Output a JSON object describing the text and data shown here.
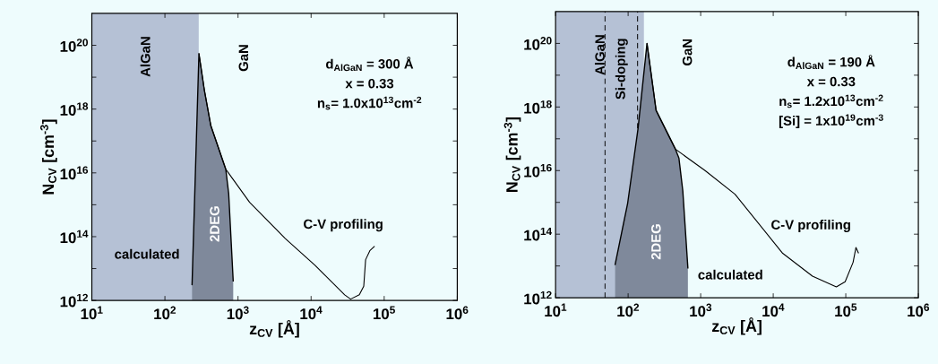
{
  "chart_data": [
    {
      "type": "line",
      "log": "xy",
      "xlabel": "z$_{CV}$ [Å]",
      "ylabel": "N$_{CV}$  [cm$^{-3}$]",
      "xlim": [
        10,
        1000000
      ],
      "ylim": [
        1000000000000.0,
        1e+21
      ],
      "xticks": [
        {
          "value": 10,
          "label": "10$^{1}$"
        },
        {
          "value": 100,
          "label": "10$^{2}$"
        },
        {
          "value": 1000,
          "label": "10$^{3}$"
        },
        {
          "value": 10000,
          "label": "10$^{4}$"
        },
        {
          "value": 100000,
          "label": "10$^{5}$"
        },
        {
          "value": 1000000,
          "label": "10$^{6}$"
        }
      ],
      "yticks": [
        {
          "value": 1000000000000.0,
          "label": "10$^{12}$"
        },
        {
          "value": 10000000000000.0,
          "label": null
        },
        {
          "value": 100000000000000.0,
          "label": "10$^{14}$"
        },
        {
          "value": 1000000000000000.0,
          "label": null
        },
        {
          "value": 1e+16,
          "label": "10$^{16}$"
        },
        {
          "value": 1e+17,
          "label": null
        },
        {
          "value": 1e+18,
          "label": "10$^{18}$"
        },
        {
          "value": 1e+19,
          "label": null
        },
        {
          "value": 1e+20,
          "label": "10$^{20}$"
        }
      ],
      "bands": [
        {
          "axis": "x",
          "from": 10,
          "to": 290,
          "label": "AlGaN",
          "color": "#b5c1d5"
        }
      ],
      "series": [
        {
          "type": "area",
          "color": "#7f899b",
          "x": [
            235,
            292,
            346,
            425,
            680,
            746,
            860
          ],
          "values": [
            3000000000000.0,
            5.5e+19,
            4e+18,
            3e+17,
            1.3e+16,
            2200000000000000.0,
            3900000000000.0
          ]
        },
        {
          "type": "line",
          "color": "#000000",
          "x": [
            292,
            346,
            425,
            680,
            1440,
            4440,
            11300,
            28800,
            34700,
            45700,
            52500,
            55700,
            64000,
            74000
          ],
          "values": [
            5.5e+19,
            4e+18,
            3e+17,
            1.3e+16,
            1200000000000000.0,
            87000000000000.0,
            12600000000000.0,
            1500000000000.0,
            1100000000000.0,
            1500000000000.0,
            2800000000000.0,
            19000000000000.0,
            37000000000000.0,
            50000000000000.0
          ]
        }
      ],
      "annotations": [
        "GaN",
        "2DEG",
        "calculated",
        "C-V profiling",
        "d$_{AlGaN}$ = 300 Å",
        "x = 0.33",
        "n$_{s}$= 1.0x10$^{13}$cm$^{-2}$"
      ]
    },
    {
      "type": "line",
      "log": "xy",
      "xlabel": "z$_{CV}$ [Å]",
      "ylabel": "N$_{CV}$  [cm$^{-3}$]",
      "xlim": [
        10,
        1000000
      ],
      "ylim": [
        1000000000000.0,
        1e+21
      ],
      "xticks": [
        {
          "value": 10,
          "label": "10$^{1}$"
        },
        {
          "value": 100,
          "label": "10$^{2}$"
        },
        {
          "value": 1000,
          "label": "10$^{3}$"
        },
        {
          "value": 10000,
          "label": "10$^{4}$"
        },
        {
          "value": 100000,
          "label": "10$^{5}$"
        },
        {
          "value": 1000000,
          "label": "10$^{6}$"
        }
      ],
      "yticks": [
        {
          "value": 1000000000000.0,
          "label": "10$^{12}$"
        },
        {
          "value": 10000000000000.0,
          "label": null
        },
        {
          "value": 100000000000000.0,
          "label": "10$^{14}$"
        },
        {
          "value": 1000000000000000.0,
          "label": null
        },
        {
          "value": 1e+16,
          "label": "10$^{16}$"
        },
        {
          "value": 1e+17,
          "label": null
        },
        {
          "value": 1e+18,
          "label": "10$^{18}$"
        },
        {
          "value": 1e+19,
          "label": null
        },
        {
          "value": 1e+20,
          "label": "10$^{20}$"
        }
      ],
      "bands": [
        {
          "axis": "x",
          "from": 10,
          "to": 165,
          "label": "AlGaN",
          "color": "#b5c1d5"
        }
      ],
      "ref_lines": [
        {
          "axis": "x",
          "value": 48,
          "line_style": "dashed",
          "color": "#000000"
        },
        {
          "axis": "x",
          "value": 135,
          "line_style": "dashed",
          "color": "#000000"
        }
      ],
      "series": [
        {
          "type": "area",
          "color": "#7f899b",
          "x": [
            66,
            98.6,
            137,
            182,
            243,
            449,
            501,
            567,
            667
          ],
          "values": [
            10700000000000.0,
            950000000000000.0,
            2.1e+17,
            1e+20,
            7.8e+17,
            4.7e+16,
            2.5e+16,
            2300000000000000.0,
            8300000000000.0
          ]
        },
        {
          "type": "line",
          "color": "#000000",
          "x": [
            182,
            243,
            449,
            1150,
            2970,
            13500,
            34700,
            74100,
            98000,
            126000,
            138000,
            150000
          ],
          "values": [
            1e+20,
            7.8e+17,
            4.7e+16,
            1e+16,
            1800000000000000.0,
            25000000000000.0,
            4800000000000.0,
            2200000000000.0,
            3200000000000.0,
            13000000000000.0,
            38000000000000.0,
            25000000000000.0
          ]
        }
      ],
      "annotations": [
        "GaN",
        "2DEG",
        "calculated",
        "C-V profiling",
        "Si-doping",
        "d$_{AlGaN}$ = 190 Å",
        "x = 0.33",
        "n$_{s}$= 1.2x10$^{13}$cm$^{-2}$",
        "[Si] = 1x10$^{19}$cm$^{-3}$"
      ]
    }
  ]
}
